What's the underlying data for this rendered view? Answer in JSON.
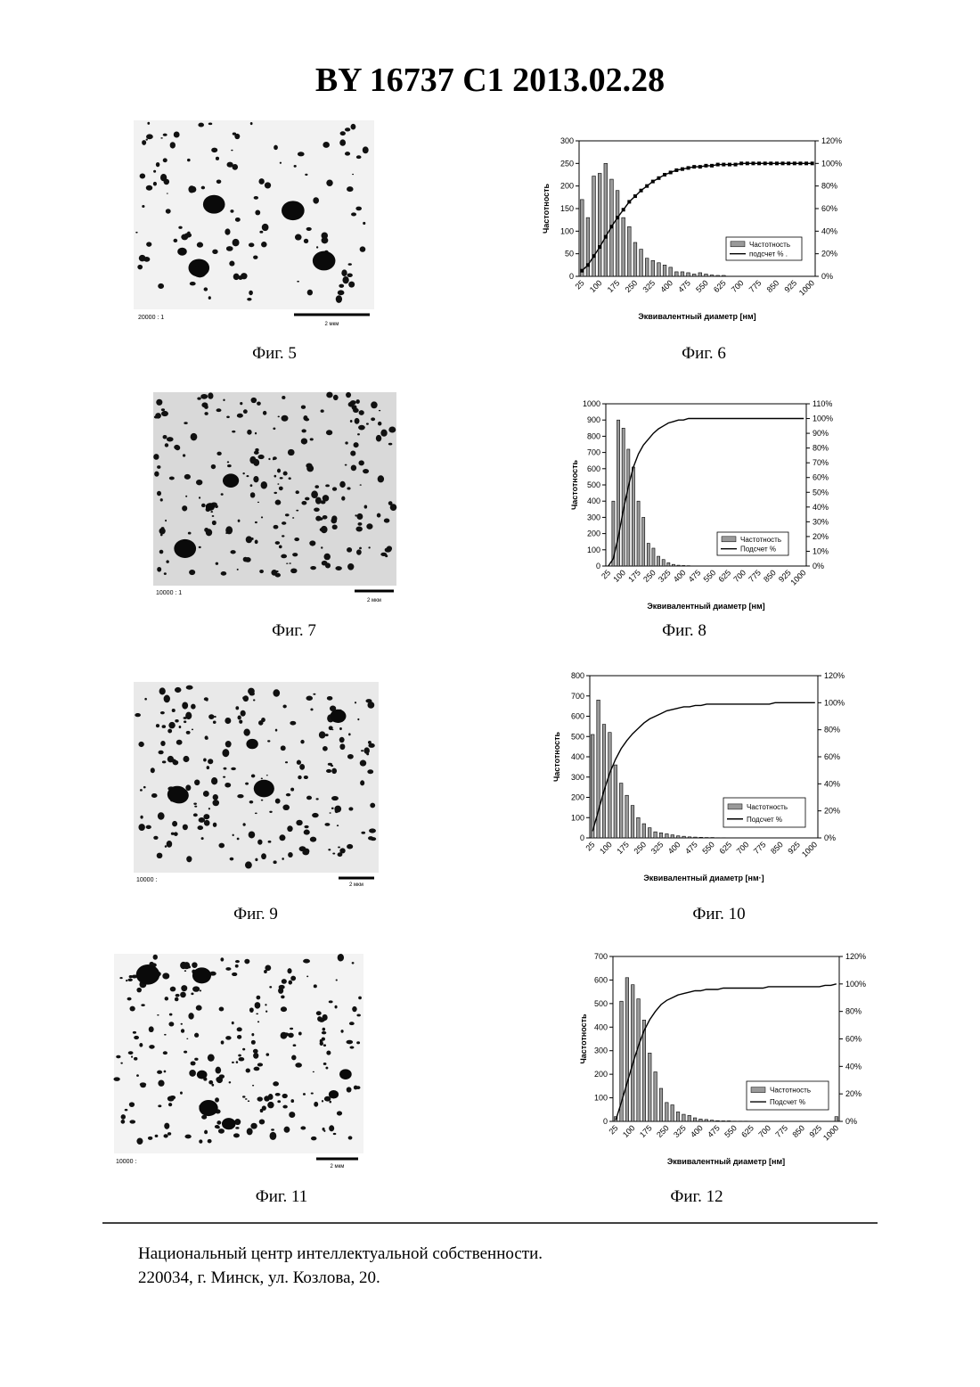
{
  "header": {
    "title": "BY  16737  C1  2013.02.28"
  },
  "figures": [
    {
      "caption": "Фиг. 5",
      "magnification": "20000 : 1",
      "scale": "2 мкм"
    },
    {
      "caption": "Фиг. 7",
      "magnification": "10000 : 1",
      "scale": "2 мкм"
    },
    {
      "caption": "Фиг. 9",
      "magnification": "10000 :",
      "scale": "2 мкм"
    },
    {
      "caption": "Фиг. 11",
      "magnification": "10000 :",
      "scale": "2 мкм"
    }
  ],
  "chart_data": [
    {
      "type": "combo",
      "caption": "Фиг. 6",
      "x_label": "Эквивалентный диаметр [нм]",
      "y_label": "Частотность",
      "legend": "lower right",
      "categories": [
        "25",
        null,
        null,
        "100",
        null,
        null,
        "175",
        null,
        null,
        "250",
        null,
        null,
        "325",
        null,
        null,
        "400",
        null,
        null,
        "475",
        null,
        null,
        "550",
        null,
        null,
        "625",
        null,
        null,
        "700",
        null,
        null,
        "775",
        null,
        null,
        "850",
        null,
        null,
        "925",
        null,
        null,
        "1000"
      ],
      "ylim": [
        0,
        300
      ],
      "yticks": [
        0,
        50,
        100,
        150,
        200,
        250,
        300
      ],
      "y2lim": [
        0,
        120
      ],
      "y2ticks": [
        {
          "value": 0,
          "label": "0%"
        },
        {
          "value": 20,
          "label": "20%"
        },
        {
          "value": 40,
          "label": "40%"
        },
        {
          "value": 60,
          "label": "60%"
        },
        {
          "value": 80,
          "label": "80%"
        },
        {
          "value": 100,
          "label": "100%"
        },
        {
          "value": 120,
          "label": "120%"
        }
      ],
      "series": [
        {
          "name": "Частотность",
          "kind": "bar",
          "color": "#9a9a9a",
          "values": [
            170,
            130,
            222,
            228,
            250,
            215,
            190,
            130,
            110,
            75,
            60,
            40,
            35,
            30,
            25,
            20,
            10,
            10,
            8,
            5,
            8,
            5,
            3,
            2,
            2,
            0,
            0,
            0,
            0,
            0,
            0,
            0,
            0,
            0,
            0,
            0,
            0,
            0,
            0,
            0
          ]
        },
        {
          "name": "подсчет % .",
          "kind": "line",
          "axis": "y2",
          "marker": "square",
          "color": "#000000",
          "values": [
            5,
            10,
            18,
            26,
            35,
            44,
            52,
            59,
            66,
            71,
            76,
            80,
            84,
            87,
            90,
            92,
            94,
            95,
            96,
            97,
            97,
            98,
            98,
            99,
            99,
            99,
            99,
            100,
            100,
            100,
            100,
            100,
            100,
            100,
            100,
            100,
            100,
            100,
            100,
            100
          ]
        }
      ]
    },
    {
      "type": "combo",
      "caption": "Фиг. 8",
      "x_label": "Эквивалентный диаметр [нм]",
      "y_label": "Частотность",
      "legend": "lower right",
      "categories": [
        "25",
        null,
        null,
        "100",
        null,
        null,
        "175",
        null,
        null,
        "250",
        null,
        null,
        "325",
        null,
        null,
        "400",
        null,
        null,
        "475",
        null,
        null,
        "550",
        null,
        null,
        "625",
        null,
        null,
        "700",
        null,
        null,
        "775",
        null,
        null,
        "850",
        null,
        null,
        "925",
        null,
        null,
        "1000"
      ],
      "ylim": [
        0,
        1000
      ],
      "yticks": [
        0,
        100,
        200,
        300,
        400,
        500,
        600,
        700,
        800,
        900,
        1000
      ],
      "y2lim": [
        0,
        110
      ],
      "y2ticks": [
        {
          "value": 0,
          "label": "0%"
        },
        {
          "value": 10,
          "label": "10%"
        },
        {
          "value": 20,
          "label": "20%"
        },
        {
          "value": 30,
          "label": "30%"
        },
        {
          "value": 40,
          "label": "40%"
        },
        {
          "value": 50,
          "label": "50%"
        },
        {
          "value": 60,
          "label": "60%"
        },
        {
          "value": 70,
          "label": "70%"
        },
        {
          "value": 80,
          "label": "80%"
        },
        {
          "value": 90,
          "label": "90%"
        },
        {
          "value": 100,
          "label": "100%"
        },
        {
          "value": 110,
          "label": "110%"
        }
      ],
      "series": [
        {
          "name": "Частотность",
          "kind": "bar",
          "color": "#9a9a9a",
          "values": [
            0,
            400,
            900,
            850,
            720,
            610,
            400,
            300,
            140,
            110,
            60,
            40,
            20,
            10,
            5,
            3,
            2,
            0,
            0,
            0,
            0,
            0,
            0,
            0,
            0,
            0,
            0,
            0,
            0,
            0,
            0,
            0,
            0,
            0,
            0,
            0,
            0,
            0,
            0,
            0
          ]
        },
        {
          "name": "Подсчет  %",
          "kind": "line",
          "axis": "y2",
          "color": "#000000",
          "values": [
            0,
            5,
            20,
            38,
            54,
            67,
            76,
            82,
            86,
            90,
            93,
            95,
            97,
            98,
            99,
            99,
            100,
            100,
            100,
            100,
            100,
            100,
            100,
            100,
            100,
            100,
            100,
            100,
            100,
            100,
            100,
            100,
            100,
            100,
            100,
            100,
            100,
            100,
            100,
            100
          ]
        }
      ]
    },
    {
      "type": "combo",
      "caption": "Фиг. 10",
      "x_label": "Эквивалентный диаметр [нм·]",
      "y_label": "Частотность",
      "legend": "lower right",
      "categories": [
        "25",
        null,
        null,
        "100",
        null,
        null,
        "175",
        null,
        null,
        "250",
        null,
        null,
        "325",
        null,
        null,
        "400",
        null,
        null,
        "475",
        null,
        null,
        "550",
        null,
        null,
        "625",
        null,
        null,
        "700",
        null,
        null,
        "775",
        null,
        null,
        "850",
        null,
        null,
        "925",
        null,
        null,
        "1000"
      ],
      "ylim": [
        0,
        800
      ],
      "yticks": [
        0,
        100,
        200,
        300,
        400,
        500,
        600,
        700,
        800
      ],
      "y2lim": [
        0,
        120
      ],
      "y2ticks": [
        {
          "value": 0,
          "label": "0%"
        },
        {
          "value": 20,
          "label": "20%"
        },
        {
          "value": 40,
          "label": "40%"
        },
        {
          "value": 60,
          "label": "60%"
        },
        {
          "value": 80,
          "label": "80%"
        },
        {
          "value": 100,
          "label": "100%"
        },
        {
          "value": 120,
          "label": "120%"
        }
      ],
      "series": [
        {
          "name": "Частотность",
          "kind": "bar",
          "color": "#9a9a9a",
          "values": [
            510,
            680,
            560,
            520,
            360,
            270,
            210,
            160,
            100,
            70,
            50,
            30,
            25,
            20,
            15,
            10,
            8,
            5,
            4,
            3,
            2,
            2,
            1,
            1,
            0,
            0,
            0,
            0,
            0,
            0,
            0,
            0,
            0,
            0,
            0,
            0,
            0,
            0,
            0,
            0
          ]
        },
        {
          "name": "Подсчет %",
          "kind": "line",
          "axis": "y2",
          "color": "#000000",
          "values": [
            5,
            20,
            35,
            48,
            58,
            66,
            72,
            77,
            81,
            85,
            88,
            90,
            92,
            94,
            95,
            96,
            97,
            97,
            98,
            98,
            99,
            99,
            99,
            99,
            99,
            99,
            99,
            99,
            99,
            99,
            99,
            99,
            100,
            100,
            100,
            100,
            100,
            100,
            100,
            100
          ]
        }
      ]
    },
    {
      "type": "combo",
      "caption": "Фиг. 12",
      "x_label": "Эквивалентный диаметр [нм]",
      "y_label": "Частотность",
      "legend": "lower right",
      "categories": [
        "25",
        null,
        null,
        "100",
        null,
        null,
        "175",
        null,
        null,
        "250",
        null,
        null,
        "325",
        null,
        null,
        "400",
        null,
        null,
        "475",
        null,
        null,
        "550",
        null,
        null,
        "625",
        null,
        null,
        "700",
        null,
        null,
        "775",
        null,
        null,
        "850",
        null,
        null,
        "925",
        null,
        null,
        "1000"
      ],
      "ylim": [
        0,
        700
      ],
      "yticks": [
        0,
        100,
        200,
        300,
        400,
        500,
        600,
        700
      ],
      "y2lim": [
        0,
        120
      ],
      "y2ticks": [
        {
          "value": 0,
          "label": "0%"
        },
        {
          "value": 20,
          "label": "20%"
        },
        {
          "value": 40,
          "label": "40%"
        },
        {
          "value": 60,
          "label": "60%"
        },
        {
          "value": 80,
          "label": "80%"
        },
        {
          "value": 100,
          "label": "100%"
        },
        {
          "value": 120,
          "label": "120%"
        }
      ],
      "series": [
        {
          "name": "Частотность",
          "kind": "bar",
          "color": "#9a9a9a",
          "values": [
            20,
            510,
            610,
            580,
            520,
            430,
            290,
            210,
            140,
            80,
            70,
            40,
            30,
            25,
            15,
            10,
            8,
            5,
            3,
            2,
            2,
            1,
            1,
            1,
            0,
            0,
            0,
            0,
            0,
            0,
            0,
            0,
            0,
            0,
            0,
            0,
            0,
            0,
            0,
            20
          ]
        },
        {
          "name": "Подсчет   %",
          "kind": "line",
          "axis": "y2",
          "color": "#000000",
          "values": [
            1,
            14,
            28,
            42,
            55,
            66,
            74,
            80,
            85,
            88,
            90,
            92,
            93,
            94,
            95,
            95,
            96,
            96,
            96,
            97,
            97,
            97,
            97,
            97,
            97,
            97,
            97,
            98,
            98,
            98,
            98,
            98,
            98,
            98,
            98,
            98,
            98,
            99,
            99,
            100
          ]
        }
      ]
    }
  ],
  "footer": {
    "lines": [
      "Национальный центр интеллектуальной собственности.",
      "220034, г. Минск, ул. Козлова, 20."
    ]
  }
}
